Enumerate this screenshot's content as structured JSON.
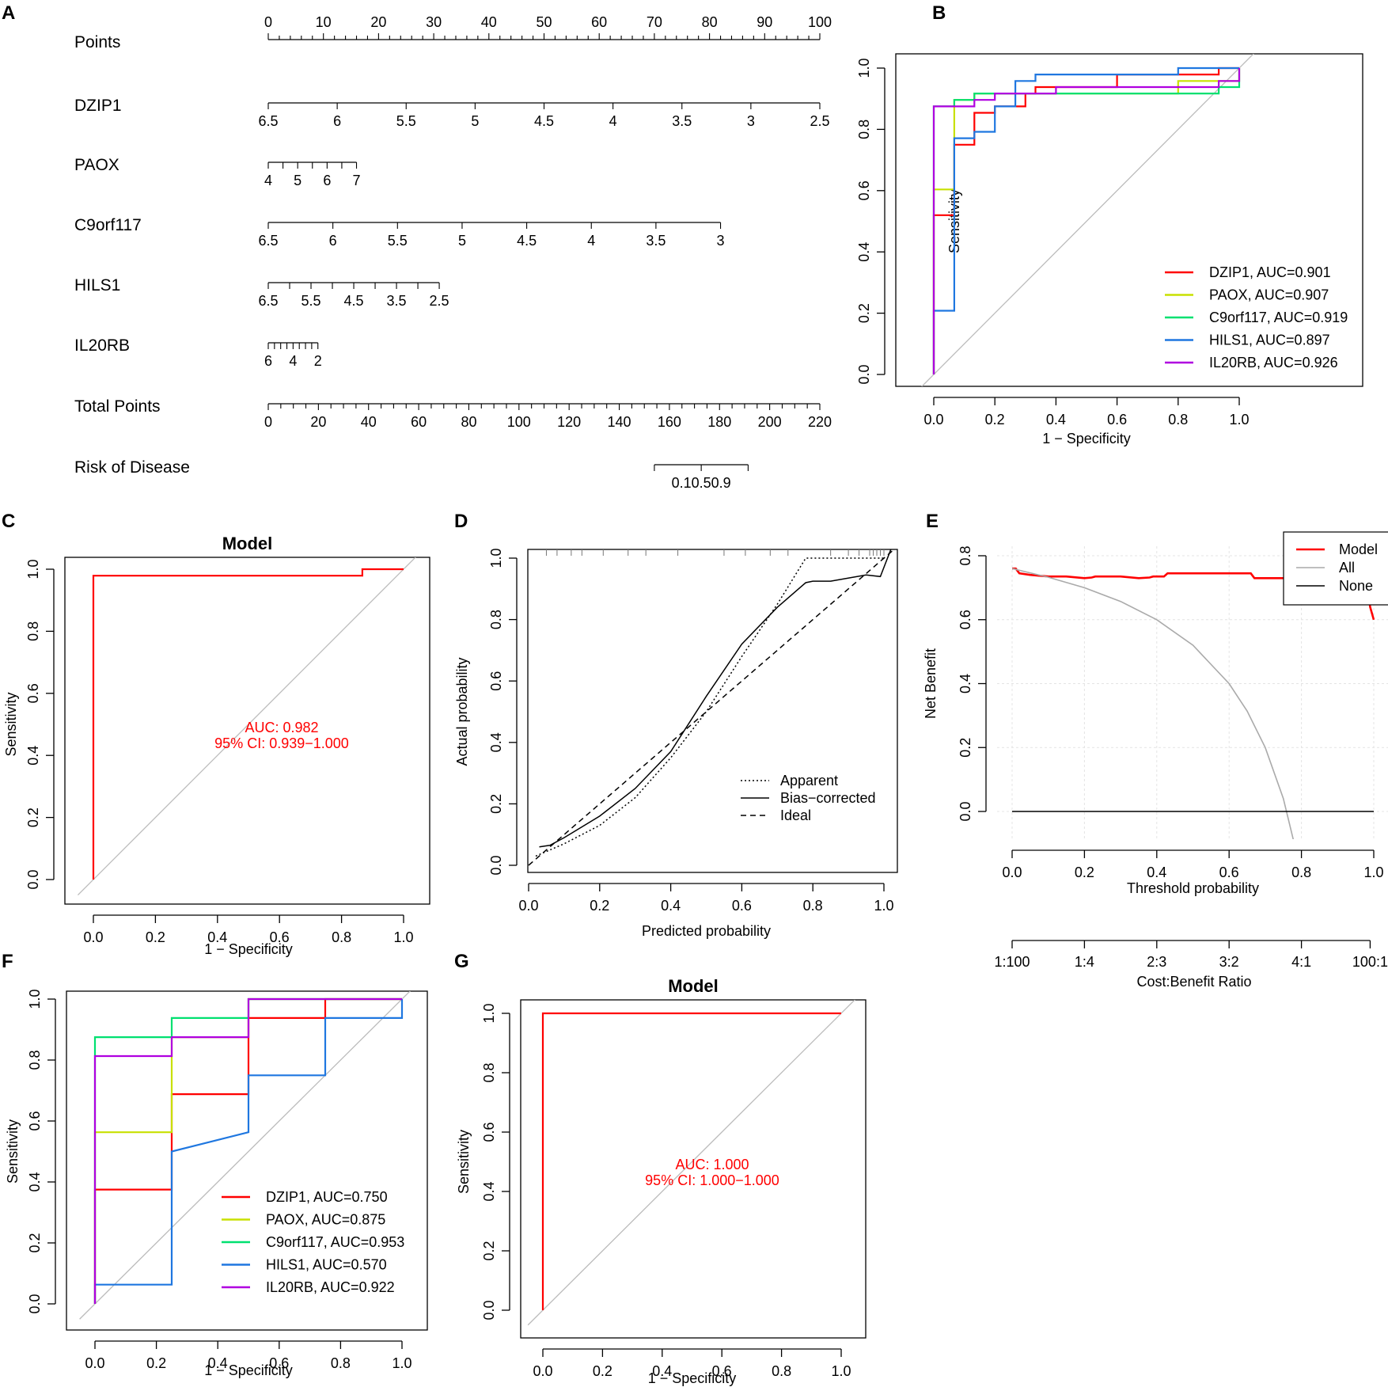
{
  "panels": {
    "A": "A",
    "B": "B",
    "C": "C",
    "D": "D",
    "E": "E",
    "F": "F",
    "G": "G"
  },
  "chart_data": [
    {
      "panel": "A",
      "type": "nomogram",
      "rows": [
        {
          "label": "Points",
          "ticks": [
            "0",
            "10",
            "20",
            "30",
            "40",
            "50",
            "60",
            "70",
            "80",
            "90",
            "100"
          ],
          "ticks_above": true
        },
        {
          "label": "DZIP1",
          "ticks": [
            "6.5",
            "6",
            "5.5",
            "5",
            "4.5",
            "4",
            "3.5",
            "3",
            "2.5"
          ]
        },
        {
          "label": "PAOX",
          "ticks": [
            "4",
            "5",
            "6",
            "7"
          ]
        },
        {
          "label": "C9orf117",
          "ticks": [
            "6.5",
            "6",
            "5.5",
            "5",
            "4.5",
            "4",
            "3.5",
            "3"
          ]
        },
        {
          "label": "HILS1",
          "ticks": [
            "6.5",
            "5.5",
            "4.5",
            "3.5",
            "2.5"
          ]
        },
        {
          "label": "IL20RB",
          "ticks": [
            "6",
            "4",
            "2"
          ]
        },
        {
          "label": "Total Points",
          "ticks": [
            "0",
            "20",
            "40",
            "60",
            "80",
            "100",
            "120",
            "140",
            "160",
            "180",
            "200",
            "220"
          ]
        },
        {
          "label": "Risk of Disease",
          "ticks_text": "0.10.50.9",
          "ticks": [
            "0.1",
            "0.5",
            "0.9"
          ]
        }
      ],
      "points_range": [
        0,
        100
      ],
      "total_points_range": [
        0,
        220
      ],
      "row_point_spans": {
        "DZIP1": [
          0,
          100
        ],
        "PAOX": [
          0,
          16
        ],
        "C9orf117": [
          0,
          82
        ],
        "HILS1": [
          0,
          31
        ],
        "IL20RB": [
          0,
          9
        ],
        "Risk of Disease": [
          70,
          87
        ]
      }
    },
    {
      "panel": "B",
      "type": "line",
      "title": "",
      "xlabel": "1 − Specificity",
      "ylabel": "Sensitivity",
      "xlim": [
        0,
        1
      ],
      "ylim": [
        0,
        1
      ],
      "xticks": [
        "0.0",
        "0.2",
        "0.4",
        "0.6",
        "0.8",
        "1.0"
      ],
      "yticks": [
        "0.0",
        "0.2",
        "0.4",
        "0.6",
        "0.8",
        "1.0"
      ],
      "legend_position": "bottom-right",
      "series": [
        {
          "name": "DZIP1, AUC=0.901",
          "color": "#ff0000",
          "points": [
            [
              0,
              0
            ],
            [
              0,
              0.52
            ],
            [
              0.067,
              0.52
            ],
            [
              0.067,
              0.75
            ],
            [
              0.133,
              0.75
            ],
            [
              0.133,
              0.854
            ],
            [
              0.2,
              0.854
            ],
            [
              0.2,
              0.875
            ],
            [
              0.3,
              0.875
            ],
            [
              0.3,
              0.917
            ],
            [
              0.333,
              0.917
            ],
            [
              0.333,
              0.938
            ],
            [
              0.6,
              0.938
            ],
            [
              0.6,
              0.979
            ],
            [
              0.933,
              0.979
            ],
            [
              0.933,
              1
            ],
            [
              1,
              1
            ]
          ]
        },
        {
          "name": "PAOX, AUC=0.907",
          "color": "#c8e000",
          "points": [
            [
              0,
              0
            ],
            [
              0,
              0.604
            ],
            [
              0.067,
              0.604
            ],
            [
              0.067,
              0.771
            ],
            [
              0.067,
              0.896
            ],
            [
              0.133,
              0.896
            ],
            [
              0.133,
              0.917
            ],
            [
              0.8,
              0.917
            ],
            [
              0.8,
              0.958
            ],
            [
              1,
              0.958
            ],
            [
              1,
              1
            ]
          ]
        },
        {
          "name": "C9orf117, AUC=0.919",
          "color": "#00e070",
          "points": [
            [
              0,
              0
            ],
            [
              0,
              0.875
            ],
            [
              0.067,
              0.875
            ],
            [
              0.067,
              0.896
            ],
            [
              0.133,
              0.896
            ],
            [
              0.133,
              0.917
            ],
            [
              0.3,
              0.917
            ],
            [
              0.933,
              0.917
            ],
            [
              0.933,
              0.938
            ],
            [
              1,
              0.938
            ],
            [
              1,
              1
            ]
          ]
        },
        {
          "name": "HILS1, AUC=0.897",
          "color": "#1f77e0",
          "points": [
            [
              0,
              0
            ],
            [
              0,
              0.208
            ],
            [
              0.067,
              0.208
            ],
            [
              0.067,
              0.771
            ],
            [
              0.133,
              0.771
            ],
            [
              0.133,
              0.792
            ],
            [
              0.2,
              0.792
            ],
            [
              0.2,
              0.875
            ],
            [
              0.267,
              0.875
            ],
            [
              0.267,
              0.958
            ],
            [
              0.333,
              0.958
            ],
            [
              0.333,
              0.979
            ],
            [
              0.8,
              0.979
            ],
            [
              0.8,
              1
            ],
            [
              1,
              1
            ]
          ]
        },
        {
          "name": "IL20RB, AUC=0.926",
          "color": "#b000e0",
          "points": [
            [
              0,
              0
            ],
            [
              0,
              0.875
            ],
            [
              0.133,
              0.875
            ],
            [
              0.133,
              0.896
            ],
            [
              0.2,
              0.896
            ],
            [
              0.2,
              0.917
            ],
            [
              0.4,
              0.917
            ],
            [
              0.4,
              0.938
            ],
            [
              0.933,
              0.938
            ],
            [
              0.933,
              0.958
            ],
            [
              1,
              0.958
            ],
            [
              1,
              1
            ]
          ]
        }
      ],
      "diagonal": true
    },
    {
      "panel": "C",
      "type": "line",
      "title": "Model",
      "xlabel": "1 − Specificity",
      "ylabel": "Sensitivity",
      "xlim": [
        0,
        1
      ],
      "ylim": [
        0,
        1
      ],
      "xticks": [
        "0.0",
        "0.2",
        "0.4",
        "0.6",
        "0.8",
        "1.0"
      ],
      "yticks": [
        "0.0",
        "0.2",
        "0.4",
        "0.6",
        "0.8",
        "1.0"
      ],
      "annotations": [
        "AUC: 0.982",
        "95% CI: 0.939−1.000"
      ],
      "series": [
        {
          "name": "Model",
          "color": "#ff0000",
          "points": [
            [
              0,
              0
            ],
            [
              0,
              0.979
            ],
            [
              0.867,
              0.979
            ],
            [
              0.867,
              1
            ],
            [
              1,
              1
            ]
          ]
        }
      ],
      "diagonal": true
    },
    {
      "panel": "D",
      "type": "line",
      "title": "",
      "xlabel": "Predicted probability",
      "ylabel": "Actual probability",
      "xlim": [
        0,
        1
      ],
      "ylim": [
        0,
        1
      ],
      "xticks": [
        "0.0",
        "0.2",
        "0.4",
        "0.6",
        "0.8",
        "1.0"
      ],
      "yticks": [
        "0.0",
        "0.2",
        "0.4",
        "0.6",
        "0.8",
        "1.0"
      ],
      "legend_position": "bottom-right",
      "series": [
        {
          "name": "Apparent",
          "style": "dotted",
          "points": [
            [
              0.02,
              0.03
            ],
            [
              0.1,
              0.07
            ],
            [
              0.2,
              0.13
            ],
            [
              0.3,
              0.22
            ],
            [
              0.4,
              0.35
            ],
            [
              0.5,
              0.5
            ],
            [
              0.6,
              0.68
            ],
            [
              0.7,
              0.85
            ],
            [
              0.78,
              1.0
            ],
            [
              1.0,
              1.0
            ]
          ]
        },
        {
          "name": "Bias−corrected",
          "style": "solid",
          "points": [
            [
              0.03,
              0.06
            ],
            [
              0.06,
              0.065
            ],
            [
              0.1,
              0.09
            ],
            [
              0.2,
              0.16
            ],
            [
              0.3,
              0.25
            ],
            [
              0.4,
              0.37
            ],
            [
              0.5,
              0.55
            ],
            [
              0.6,
              0.72
            ],
            [
              0.7,
              0.84
            ],
            [
              0.78,
              0.92
            ],
            [
              0.8,
              0.925
            ],
            [
              0.85,
              0.925
            ],
            [
              0.95,
              0.945
            ],
            [
              0.99,
              0.94
            ],
            [
              1.02,
              1.03
            ]
          ]
        },
        {
          "name": "Ideal",
          "style": "dashed",
          "points": [
            [
              0,
              0
            ],
            [
              1.03,
              1.03
            ]
          ]
        }
      ],
      "rug_top": true
    },
    {
      "panel": "E",
      "type": "line",
      "title": "",
      "xlabel": "Threshold probability",
      "ylabel": "Net Benefit",
      "xlim": [
        0,
        1
      ],
      "ylim": [
        0,
        0.8
      ],
      "xticks": [
        "0.0",
        "0.2",
        "0.4",
        "0.6",
        "0.8",
        "1.0"
      ],
      "yticks": [
        "0.0",
        "0.2",
        "0.4",
        "0.6",
        "0.8"
      ],
      "secondary_axis": {
        "label": "Cost:Benefit Ratio",
        "ticks": [
          "1:100",
          "1:4",
          "2:3",
          "3:2",
          "4:1",
          "100:1"
        ]
      },
      "legend_position": "top-right",
      "series": [
        {
          "name": "Model",
          "color": "#ff0000",
          "points": [
            [
              0,
              0.76
            ],
            [
              0.01,
              0.76
            ],
            [
              0.02,
              0.745
            ],
            [
              0.05,
              0.74
            ],
            [
              0.1,
              0.735
            ],
            [
              0.15,
              0.735
            ],
            [
              0.2,
              0.73
            ],
            [
              0.22,
              0.732
            ],
            [
              0.23,
              0.735
            ],
            [
              0.3,
              0.735
            ],
            [
              0.35,
              0.73
            ],
            [
              0.38,
              0.732
            ],
            [
              0.39,
              0.735
            ],
            [
              0.42,
              0.735
            ],
            [
              0.43,
              0.745
            ],
            [
              0.66,
              0.745
            ],
            [
              0.67,
              0.73
            ],
            [
              0.98,
              0.73
            ],
            [
              0.99,
              0.64
            ],
            [
              1.0,
              0.6
            ]
          ]
        },
        {
          "name": "All",
          "color": "#aaaaaa",
          "points": [
            [
              0,
              0.76
            ],
            [
              0.1,
              0.733
            ],
            [
              0.2,
              0.7
            ],
            [
              0.3,
              0.657
            ],
            [
              0.4,
              0.6
            ],
            [
              0.5,
              0.52
            ],
            [
              0.6,
              0.4
            ],
            [
              0.65,
              0.314
            ],
            [
              0.7,
              0.2
            ],
            [
              0.75,
              0.04
            ],
            [
              0.78,
              -0.1
            ]
          ]
        },
        {
          "name": "None",
          "color": "#000000",
          "points": [
            [
              0,
              0
            ],
            [
              1,
              0
            ]
          ]
        }
      ]
    },
    {
      "panel": "F",
      "type": "line",
      "title": "",
      "xlabel": "1 − Specificity",
      "ylabel": "Sensitivity",
      "xlim": [
        0,
        1
      ],
      "ylim": [
        0,
        1
      ],
      "xticks": [
        "0.0",
        "0.2",
        "0.4",
        "0.6",
        "0.8",
        "1.0"
      ],
      "yticks": [
        "0.0",
        "0.2",
        "0.4",
        "0.6",
        "0.8",
        "1.0"
      ],
      "legend_position": "bottom-right",
      "series": [
        {
          "name": "DZIP1, AUC=0.750",
          "color": "#ff0000",
          "points": [
            [
              0,
              0
            ],
            [
              0,
              0.375
            ],
            [
              0.25,
              0.375
            ],
            [
              0.25,
              0.688
            ],
            [
              0.5,
              0.688
            ],
            [
              0.5,
              0.938
            ],
            [
              0.75,
              0.938
            ],
            [
              0.75,
              1
            ],
            [
              1,
              1
            ]
          ]
        },
        {
          "name": "PAOX, AUC=0.875",
          "color": "#c8e000",
          "points": [
            [
              0,
              0
            ],
            [
              0,
              0.563
            ],
            [
              0.25,
              0.563
            ],
            [
              0.25,
              0.875
            ],
            [
              0.5,
              0.875
            ],
            [
              0.5,
              1
            ],
            [
              1,
              1
            ]
          ]
        },
        {
          "name": "C9orf117, AUC=0.953",
          "color": "#00e070",
          "points": [
            [
              0,
              0
            ],
            [
              0,
              0.875
            ],
            [
              0.25,
              0.875
            ],
            [
              0.25,
              0.938
            ],
            [
              0.5,
              0.938
            ],
            [
              0.5,
              1
            ],
            [
              1,
              1
            ]
          ]
        },
        {
          "name": "HILS1, AUC=0.570",
          "color": "#1f77e0",
          "points": [
            [
              0,
              0
            ],
            [
              0,
              0.063
            ],
            [
              0.25,
              0.063
            ],
            [
              0.25,
              0.5
            ],
            [
              0.5,
              0.563
            ],
            [
              0.5,
              0.75
            ],
            [
              0.75,
              0.75
            ],
            [
              0.75,
              0.938
            ],
            [
              1,
              0.938
            ],
            [
              1,
              1
            ]
          ]
        },
        {
          "name": "IL20RB, AUC=0.922",
          "color": "#b000e0",
          "points": [
            [
              0,
              0
            ],
            [
              0,
              0.813
            ],
            [
              0.25,
              0.813
            ],
            [
              0.25,
              0.875
            ],
            [
              0.5,
              0.875
            ],
            [
              0.5,
              1
            ],
            [
              1,
              1
            ]
          ]
        }
      ],
      "diagonal": true
    },
    {
      "panel": "G",
      "type": "line",
      "title": "Model",
      "xlabel": "1 − Specificity",
      "ylabel": "Sensitivity",
      "xlim": [
        0,
        1
      ],
      "ylim": [
        0,
        1
      ],
      "xticks": [
        "0.0",
        "0.2",
        "0.4",
        "0.6",
        "0.8",
        "1.0"
      ],
      "yticks": [
        "0.0",
        "0.2",
        "0.4",
        "0.6",
        "0.8",
        "1.0"
      ],
      "annotations": [
        "AUC: 1.000",
        "95% CI: 1.000−1.000"
      ],
      "series": [
        {
          "name": "Model",
          "color": "#ff0000",
          "points": [
            [
              0,
              0
            ],
            [
              0,
              1
            ],
            [
              1,
              1
            ]
          ]
        }
      ],
      "diagonal": true
    }
  ]
}
